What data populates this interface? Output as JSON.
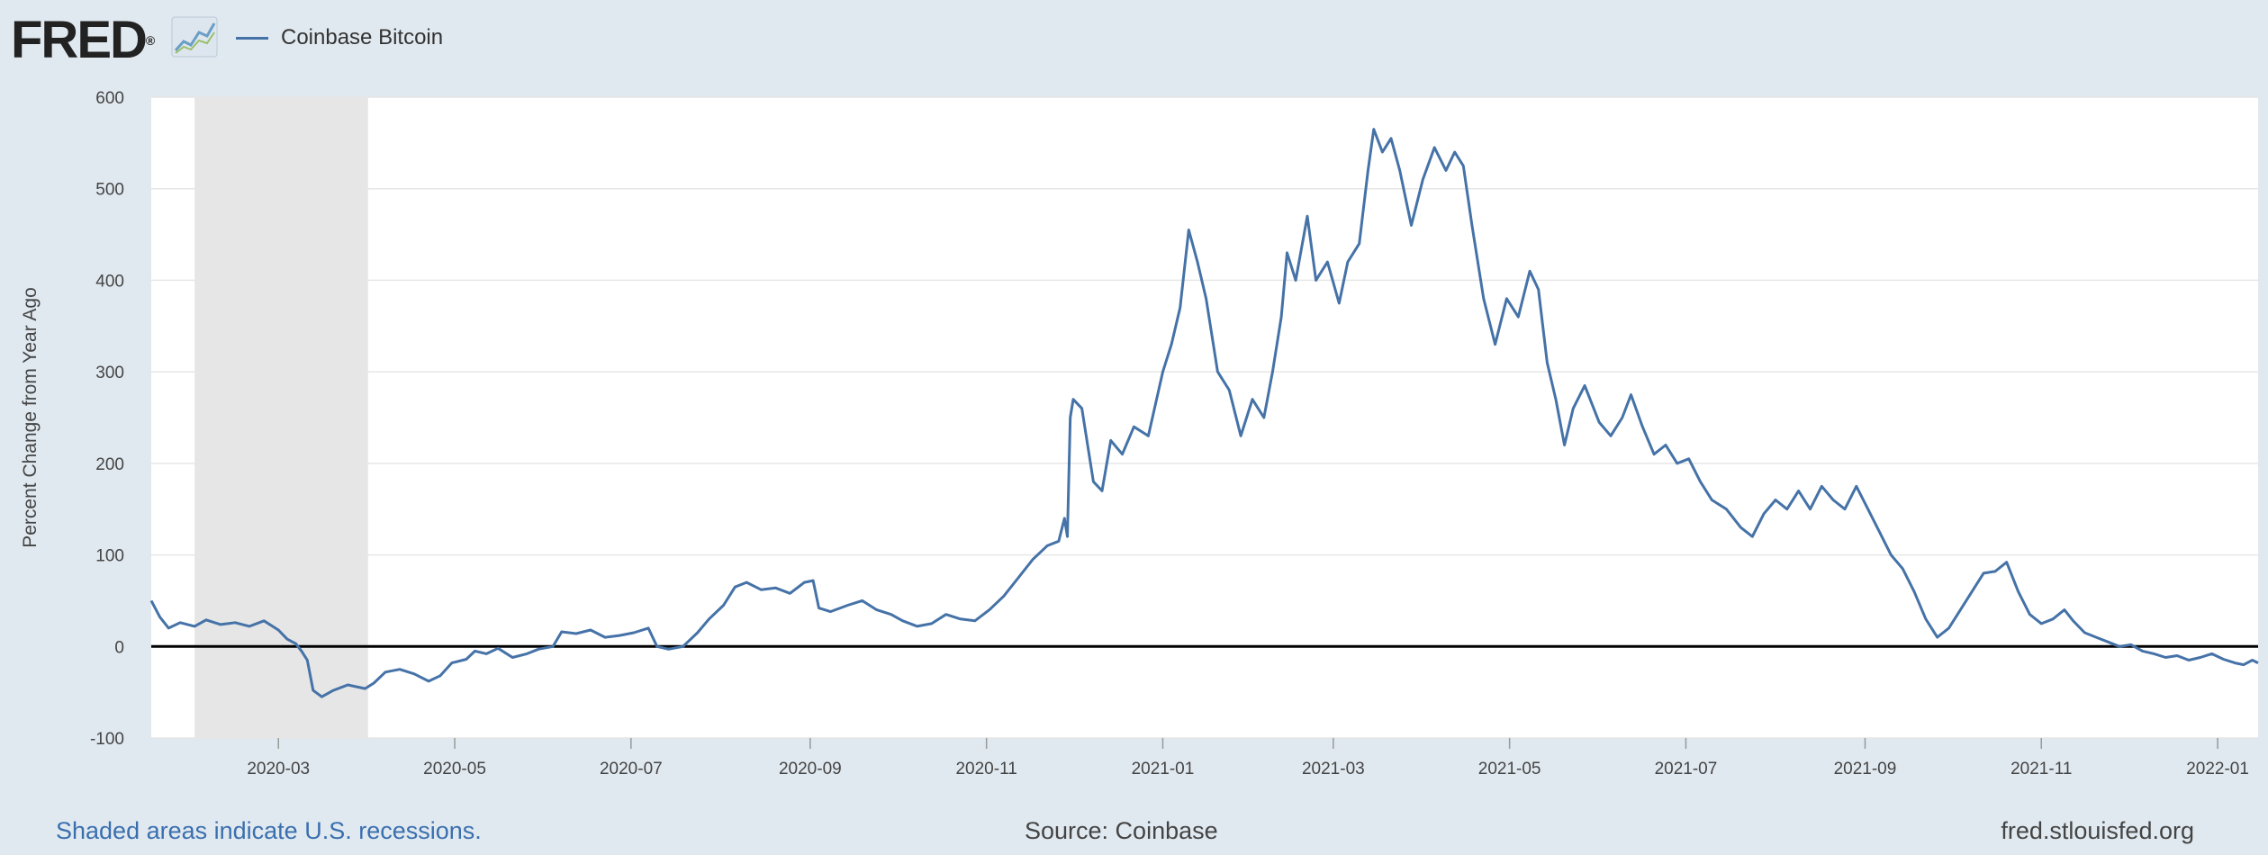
{
  "header": {
    "logo": "FRED",
    "legend_label": "Coinbase Bitcoin"
  },
  "footer": {
    "recession_note": "Shaded areas indicate U.S. recessions.",
    "source": "Source: Coinbase",
    "site": "fred.stlouisfed.org"
  },
  "colors": {
    "series": "#4572a7",
    "background": "#e1e9f0",
    "plot_background": "#ffffff",
    "recession_shade": "#e6e6e6",
    "zero_line": "#000000"
  },
  "icons": {
    "logo_chart": "line-chart-icon"
  },
  "chart_data": {
    "type": "line",
    "title": "",
    "xlabel": "",
    "ylabel": "Percent Change from Year Ago",
    "xlim": [
      "2020-01-17",
      "2022-01-15"
    ],
    "ylim": [
      -100,
      600
    ],
    "yticks": [
      -100,
      0,
      100,
      200,
      300,
      400,
      500,
      600
    ],
    "xticks": [
      "2020-03",
      "2020-05",
      "2020-07",
      "2020-09",
      "2020-11",
      "2021-01",
      "2021-03",
      "2021-05",
      "2021-07",
      "2021-09",
      "2021-11",
      "2022-01"
    ],
    "grid": true,
    "legend": "top-left",
    "recessions": [
      {
        "start": "2020-02-01",
        "end": "2020-04-01"
      }
    ],
    "reference_line": 0,
    "series": [
      {
        "name": "Coinbase Bitcoin",
        "points": [
          [
            "2020-01-17",
            50
          ],
          [
            "2020-01-20",
            32
          ],
          [
            "2020-01-23",
            20
          ],
          [
            "2020-01-27",
            26
          ],
          [
            "2020-02-01",
            22
          ],
          [
            "2020-02-05",
            29
          ],
          [
            "2020-02-10",
            24
          ],
          [
            "2020-02-15",
            26
          ],
          [
            "2020-02-20",
            22
          ],
          [
            "2020-02-25",
            28
          ],
          [
            "2020-03-01",
            18
          ],
          [
            "2020-03-04",
            8
          ],
          [
            "2020-03-07",
            3
          ],
          [
            "2020-03-09",
            -5
          ],
          [
            "2020-03-11",
            -15
          ],
          [
            "2020-03-13",
            -48
          ],
          [
            "2020-03-16",
            -55
          ],
          [
            "2020-03-20",
            -48
          ],
          [
            "2020-03-25",
            -42
          ],
          [
            "2020-03-31",
            -46
          ],
          [
            "2020-04-03",
            -40
          ],
          [
            "2020-04-07",
            -28
          ],
          [
            "2020-04-12",
            -25
          ],
          [
            "2020-04-17",
            -30
          ],
          [
            "2020-04-22",
            -38
          ],
          [
            "2020-04-26",
            -32
          ],
          [
            "2020-04-30",
            -18
          ],
          [
            "2020-05-05",
            -14
          ],
          [
            "2020-05-08",
            -5
          ],
          [
            "2020-05-12",
            -8
          ],
          [
            "2020-05-16",
            -2
          ],
          [
            "2020-05-21",
            -12
          ],
          [
            "2020-05-26",
            -8
          ],
          [
            "2020-05-30",
            -3
          ],
          [
            "2020-06-04",
            0
          ],
          [
            "2020-06-07",
            16
          ],
          [
            "2020-06-12",
            14
          ],
          [
            "2020-06-17",
            18
          ],
          [
            "2020-06-22",
            10
          ],
          [
            "2020-06-27",
            12
          ],
          [
            "2020-07-02",
            15
          ],
          [
            "2020-07-07",
            20
          ],
          [
            "2020-07-10",
            0
          ],
          [
            "2020-07-14",
            -3
          ],
          [
            "2020-07-19",
            0
          ],
          [
            "2020-07-24",
            15
          ],
          [
            "2020-07-28",
            30
          ],
          [
            "2020-08-02",
            45
          ],
          [
            "2020-08-06",
            65
          ],
          [
            "2020-08-10",
            70
          ],
          [
            "2020-08-15",
            62
          ],
          [
            "2020-08-20",
            64
          ],
          [
            "2020-08-25",
            58
          ],
          [
            "2020-08-30",
            70
          ],
          [
            "2020-09-02",
            72
          ],
          [
            "2020-09-04",
            42
          ],
          [
            "2020-09-08",
            38
          ],
          [
            "2020-09-14",
            45
          ],
          [
            "2020-09-19",
            50
          ],
          [
            "2020-09-24",
            40
          ],
          [
            "2020-09-29",
            35
          ],
          [
            "2020-10-03",
            28
          ],
          [
            "2020-10-08",
            22
          ],
          [
            "2020-10-13",
            25
          ],
          [
            "2020-10-18",
            35
          ],
          [
            "2020-10-23",
            30
          ],
          [
            "2020-10-28",
            28
          ],
          [
            "2020-11-02",
            40
          ],
          [
            "2020-11-07",
            55
          ],
          [
            "2020-11-12",
            75
          ],
          [
            "2020-11-17",
            95
          ],
          [
            "2020-11-22",
            110
          ],
          [
            "2020-11-26",
            115
          ],
          [
            "2020-11-28",
            140
          ],
          [
            "2020-11-29",
            120
          ],
          [
            "2020-11-30",
            250
          ],
          [
            "2020-12-01",
            270
          ],
          [
            "2020-12-04",
            260
          ],
          [
            "2020-12-08",
            180
          ],
          [
            "2020-12-11",
            170
          ],
          [
            "2020-12-14",
            225
          ],
          [
            "2020-12-18",
            210
          ],
          [
            "2020-12-22",
            240
          ],
          [
            "2020-12-27",
            230
          ],
          [
            "2021-01-01",
            300
          ],
          [
            "2021-01-04",
            330
          ],
          [
            "2021-01-07",
            370
          ],
          [
            "2021-01-10",
            455
          ],
          [
            "2021-01-13",
            420
          ],
          [
            "2021-01-16",
            380
          ],
          [
            "2021-01-20",
            300
          ],
          [
            "2021-01-24",
            280
          ],
          [
            "2021-01-28",
            230
          ],
          [
            "2021-02-01",
            270
          ],
          [
            "2021-02-05",
            250
          ],
          [
            "2021-02-08",
            300
          ],
          [
            "2021-02-11",
            360
          ],
          [
            "2021-02-13",
            430
          ],
          [
            "2021-02-16",
            400
          ],
          [
            "2021-02-20",
            470
          ],
          [
            "2021-02-23",
            400
          ],
          [
            "2021-02-27",
            420
          ],
          [
            "2021-03-03",
            375
          ],
          [
            "2021-03-06",
            420
          ],
          [
            "2021-03-10",
            440
          ],
          [
            "2021-03-13",
            520
          ],
          [
            "2021-03-15",
            565
          ],
          [
            "2021-03-18",
            540
          ],
          [
            "2021-03-21",
            555
          ],
          [
            "2021-03-24",
            520
          ],
          [
            "2021-03-28",
            460
          ],
          [
            "2021-04-01",
            510
          ],
          [
            "2021-04-05",
            545
          ],
          [
            "2021-04-09",
            520
          ],
          [
            "2021-04-12",
            540
          ],
          [
            "2021-04-15",
            525
          ],
          [
            "2021-04-18",
            460
          ],
          [
            "2021-04-22",
            380
          ],
          [
            "2021-04-26",
            330
          ],
          [
            "2021-04-30",
            380
          ],
          [
            "2021-05-04",
            360
          ],
          [
            "2021-05-08",
            410
          ],
          [
            "2021-05-11",
            390
          ],
          [
            "2021-05-14",
            310
          ],
          [
            "2021-05-17",
            270
          ],
          [
            "2021-05-20",
            220
          ],
          [
            "2021-05-23",
            260
          ],
          [
            "2021-05-27",
            285
          ],
          [
            "2021-06-01",
            245
          ],
          [
            "2021-06-05",
            230
          ],
          [
            "2021-06-09",
            250
          ],
          [
            "2021-06-12",
            275
          ],
          [
            "2021-06-16",
            240
          ],
          [
            "2021-06-20",
            210
          ],
          [
            "2021-06-24",
            220
          ],
          [
            "2021-06-28",
            200
          ],
          [
            "2021-07-02",
            205
          ],
          [
            "2021-07-06",
            180
          ],
          [
            "2021-07-10",
            160
          ],
          [
            "2021-07-15",
            150
          ],
          [
            "2021-07-20",
            130
          ],
          [
            "2021-07-24",
            120
          ],
          [
            "2021-07-28",
            145
          ],
          [
            "2021-08-01",
            160
          ],
          [
            "2021-08-05",
            150
          ],
          [
            "2021-08-09",
            170
          ],
          [
            "2021-08-13",
            150
          ],
          [
            "2021-08-17",
            175
          ],
          [
            "2021-08-21",
            160
          ],
          [
            "2021-08-25",
            150
          ],
          [
            "2021-08-29",
            175
          ],
          [
            "2021-09-02",
            150
          ],
          [
            "2021-09-06",
            125
          ],
          [
            "2021-09-10",
            100
          ],
          [
            "2021-09-14",
            85
          ],
          [
            "2021-09-18",
            60
          ],
          [
            "2021-09-22",
            30
          ],
          [
            "2021-09-26",
            10
          ],
          [
            "2021-09-30",
            20
          ],
          [
            "2021-10-04",
            40
          ],
          [
            "2021-10-08",
            60
          ],
          [
            "2021-10-12",
            80
          ],
          [
            "2021-10-16",
            82
          ],
          [
            "2021-10-20",
            92
          ],
          [
            "2021-10-24",
            60
          ],
          [
            "2021-10-28",
            35
          ],
          [
            "2021-11-01",
            25
          ],
          [
            "2021-11-05",
            30
          ],
          [
            "2021-11-09",
            40
          ],
          [
            "2021-11-12",
            28
          ],
          [
            "2021-11-16",
            15
          ],
          [
            "2021-11-20",
            10
          ],
          [
            "2021-11-24",
            5
          ],
          [
            "2021-11-28",
            0
          ],
          [
            "2021-12-02",
            2
          ],
          [
            "2021-12-06",
            -5
          ],
          [
            "2021-12-10",
            -8
          ],
          [
            "2021-12-14",
            -12
          ],
          [
            "2021-12-18",
            -10
          ],
          [
            "2021-12-22",
            -15
          ],
          [
            "2021-12-26",
            -12
          ],
          [
            "2021-12-30",
            -8
          ],
          [
            "2022-01-03",
            -14
          ],
          [
            "2022-01-07",
            -18
          ],
          [
            "2022-01-10",
            -20
          ],
          [
            "2022-01-13",
            -15
          ],
          [
            "2022-01-15",
            -18
          ]
        ]
      }
    ]
  }
}
